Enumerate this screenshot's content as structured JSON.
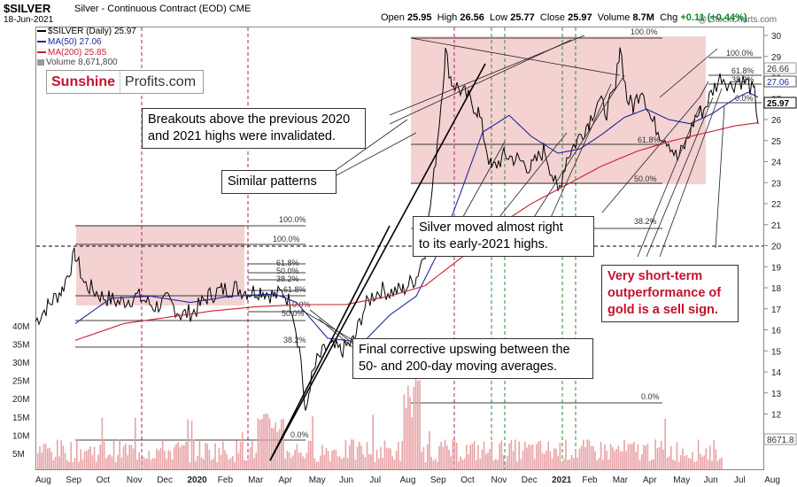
{
  "header": {
    "symbol": "$SILVER",
    "description": "Silver - Continuous Contract (EOD)",
    "exchange": "CME",
    "date": "18-Jun-2021",
    "copyright": "@ StockCharts.com",
    "open_label": "Open",
    "open": "25.95",
    "high_label": "High",
    "high": "26.56",
    "low_label": "Low",
    "low": "25.77",
    "close_label": "Close",
    "close": "25.97",
    "volume_label": "Volume",
    "volume": "8.7M",
    "chg_label": "Chg",
    "chg": "+0.11 (+0.44%)"
  },
  "legend": {
    "price": "$SILVER (Daily) 25.97",
    "ma50": "MA(50) 27.06",
    "ma200": "MA(200) 25.85",
    "volume": "Volume 8,671,800"
  },
  "logo": {
    "part1": "Sunshine",
    "part2": "Profits.com"
  },
  "callouts": {
    "breakouts": "Breakouts above the previous 2020\nand 2021 highs were invalidated.",
    "similar": "Similar patterns",
    "silver_moved": "Silver moved almost right\nto its early-2021 highs.",
    "outperformance": "Very short-term\noutperformance of\ngold is a sell sign.",
    "final_upswing": "Final corrective upswing between the\n50- and 200-day moving averages."
  },
  "colors": {
    "price": "#000000",
    "ma50": "#1f2a9e",
    "ma200": "#cc1f2f",
    "volume": "#e8a3a6",
    "shade": "#f4d2d2",
    "red_text": "#c4122f",
    "change_positive": "#0a8a2a"
  },
  "chart_data": {
    "type": "line",
    "title": "$SILVER Silver - Continuous Contract (EOD)",
    "y_ticks": [
      12,
      13,
      14,
      15,
      16,
      17,
      18,
      19,
      20,
      21,
      22,
      23,
      24,
      25,
      26,
      27,
      28,
      29,
      30
    ],
    "ylim": [
      11.3,
      30.6
    ],
    "volume_ticks": [
      "5M",
      "10M",
      "15M",
      "20M",
      "25M",
      "30M",
      "35M",
      "40M"
    ],
    "x_labels": [
      "Aug",
      "Sep",
      "Oct",
      "Nov",
      "Dec",
      "2020",
      "Feb",
      "Mar",
      "Apr",
      "May",
      "Jun",
      "Jul",
      "Aug",
      "Sep",
      "Oct",
      "Nov",
      "Dec",
      "2021",
      "Feb",
      "Mar",
      "Apr",
      "May",
      "Jun",
      "Jul",
      "Aug"
    ],
    "price_tags": [
      "26.66",
      "27.06",
      "25.97",
      "25.85",
      "8671.8"
    ],
    "fib_labels_2019": [
      "100.0%",
      "100.0%",
      "61.8%",
      "50.0%",
      "38.2%",
      "61.8%",
      "50.0%",
      "0.0%",
      "38.2%",
      "0.0%"
    ],
    "fib_labels_2021": [
      "100.0%",
      "61.8%",
      "50.0%",
      "38.2%",
      "0.0%"
    ],
    "fib_labels_recent": [
      "100.0%",
      "61.8%",
      "38.2%",
      "0.0%"
    ],
    "series": [
      {
        "name": "$SILVER (Daily)",
        "type": "line",
        "values": [
          [
            0,
            16.4
          ],
          [
            15,
            17.2
          ],
          [
            30,
            17.9
          ],
          [
            45,
            19.6
          ],
          [
            55,
            18.2
          ],
          [
            75,
            17.6
          ],
          [
            95,
            17.3
          ],
          [
            115,
            17.6
          ],
          [
            135,
            17.1
          ],
          [
            150,
            17.4
          ],
          [
            165,
            16.7
          ],
          [
            180,
            16.9
          ],
          [
            195,
            17.6
          ],
          [
            210,
            17.9
          ],
          [
            225,
            18.0
          ],
          [
            240,
            17.8
          ],
          [
            255,
            17.9
          ],
          [
            270,
            17.6
          ],
          [
            280,
            17.8
          ],
          [
            290,
            17.1
          ],
          [
            300,
            14.6
          ],
          [
            305,
            11.8
          ],
          [
            310,
            13.4
          ],
          [
            318,
            14.5
          ],
          [
            330,
            15.2
          ],
          [
            345,
            15.0
          ],
          [
            360,
            15.5
          ],
          [
            370,
            16.9
          ],
          [
            380,
            17.6
          ],
          [
            390,
            17.9
          ],
          [
            400,
            17.8
          ],
          [
            415,
            17.9
          ],
          [
            430,
            18.5
          ],
          [
            440,
            19.8
          ],
          [
            450,
            23.3
          ],
          [
            458,
            26.8
          ],
          [
            463,
            29.2
          ],
          [
            470,
            27.8
          ],
          [
            485,
            27.2
          ],
          [
            500,
            26.4
          ],
          [
            515,
            23.6
          ],
          [
            530,
            24.3
          ],
          [
            545,
            24.1
          ],
          [
            560,
            23.7
          ],
          [
            575,
            24.6
          ],
          [
            590,
            22.5
          ],
          [
            600,
            24.2
          ],
          [
            610,
            24.9
          ],
          [
            625,
            25.9
          ],
          [
            635,
            26.9
          ],
          [
            645,
            26.4
          ],
          [
            655,
            27.4
          ],
          [
            660,
            29.6
          ],
          [
            668,
            27.0
          ],
          [
            675,
            26.6
          ],
          [
            685,
            27.6
          ],
          [
            695,
            26.0
          ],
          [
            705,
            25.4
          ],
          [
            715,
            25.0
          ],
          [
            725,
            24.1
          ],
          [
            735,
            24.9
          ],
          [
            745,
            26.1
          ],
          [
            755,
            26.5
          ],
          [
            765,
            27.4
          ],
          [
            775,
            28.1
          ],
          [
            785,
            27.6
          ],
          [
            795,
            27.9
          ],
          [
            805,
            27.7
          ],
          [
            812,
            27.2
          ],
          [
            816,
            25.97
          ]
        ]
      },
      {
        "name": "MA(50)",
        "type": "line",
        "values": [
          [
            45,
            16.3
          ],
          [
            85,
            17.5
          ],
          [
            130,
            17.6
          ],
          [
            175,
            17.3
          ],
          [
            220,
            17.6
          ],
          [
            270,
            17.7
          ],
          [
            295,
            17.3
          ],
          [
            330,
            15.6
          ],
          [
            370,
            15.4
          ],
          [
            400,
            16.7
          ],
          [
            430,
            17.6
          ],
          [
            455,
            19.7
          ],
          [
            480,
            22.5
          ],
          [
            505,
            25.4
          ],
          [
            535,
            26.2
          ],
          [
            560,
            25.2
          ],
          [
            590,
            24.4
          ],
          [
            615,
            24.6
          ],
          [
            640,
            25.3
          ],
          [
            665,
            26.1
          ],
          [
            690,
            26.5
          ],
          [
            715,
            26.0
          ],
          [
            740,
            25.8
          ],
          [
            765,
            26.3
          ],
          [
            790,
            27.0
          ],
          [
            805,
            27.3
          ],
          [
            816,
            27.06
          ]
        ]
      },
      {
        "name": "MA(200)",
        "type": "line",
        "values": [
          [
            45,
            15.5
          ],
          [
            100,
            16.3
          ],
          [
            150,
            16.6
          ],
          [
            200,
            16.9
          ],
          [
            250,
            17.1
          ],
          [
            300,
            17.2
          ],
          [
            350,
            17.2
          ],
          [
            400,
            17.6
          ],
          [
            440,
            18.1
          ],
          [
            480,
            19.4
          ],
          [
            520,
            20.9
          ],
          [
            560,
            22.0
          ],
          [
            600,
            22.9
          ],
          [
            640,
            23.8
          ],
          [
            680,
            24.5
          ],
          [
            720,
            25.0
          ],
          [
            760,
            25.4
          ],
          [
            790,
            25.7
          ],
          [
            816,
            25.85
          ]
        ]
      }
    ],
    "annotations": [
      "Breakouts above the previous 2020 and 2021 highs were invalidated.",
      "Similar patterns",
      "Silver moved almost right to its early-2021 highs.",
      "Very short-term outperformance of gold is a sell sign.",
      "Final corrective upswing between the 50- and 200-day moving averages."
    ]
  }
}
